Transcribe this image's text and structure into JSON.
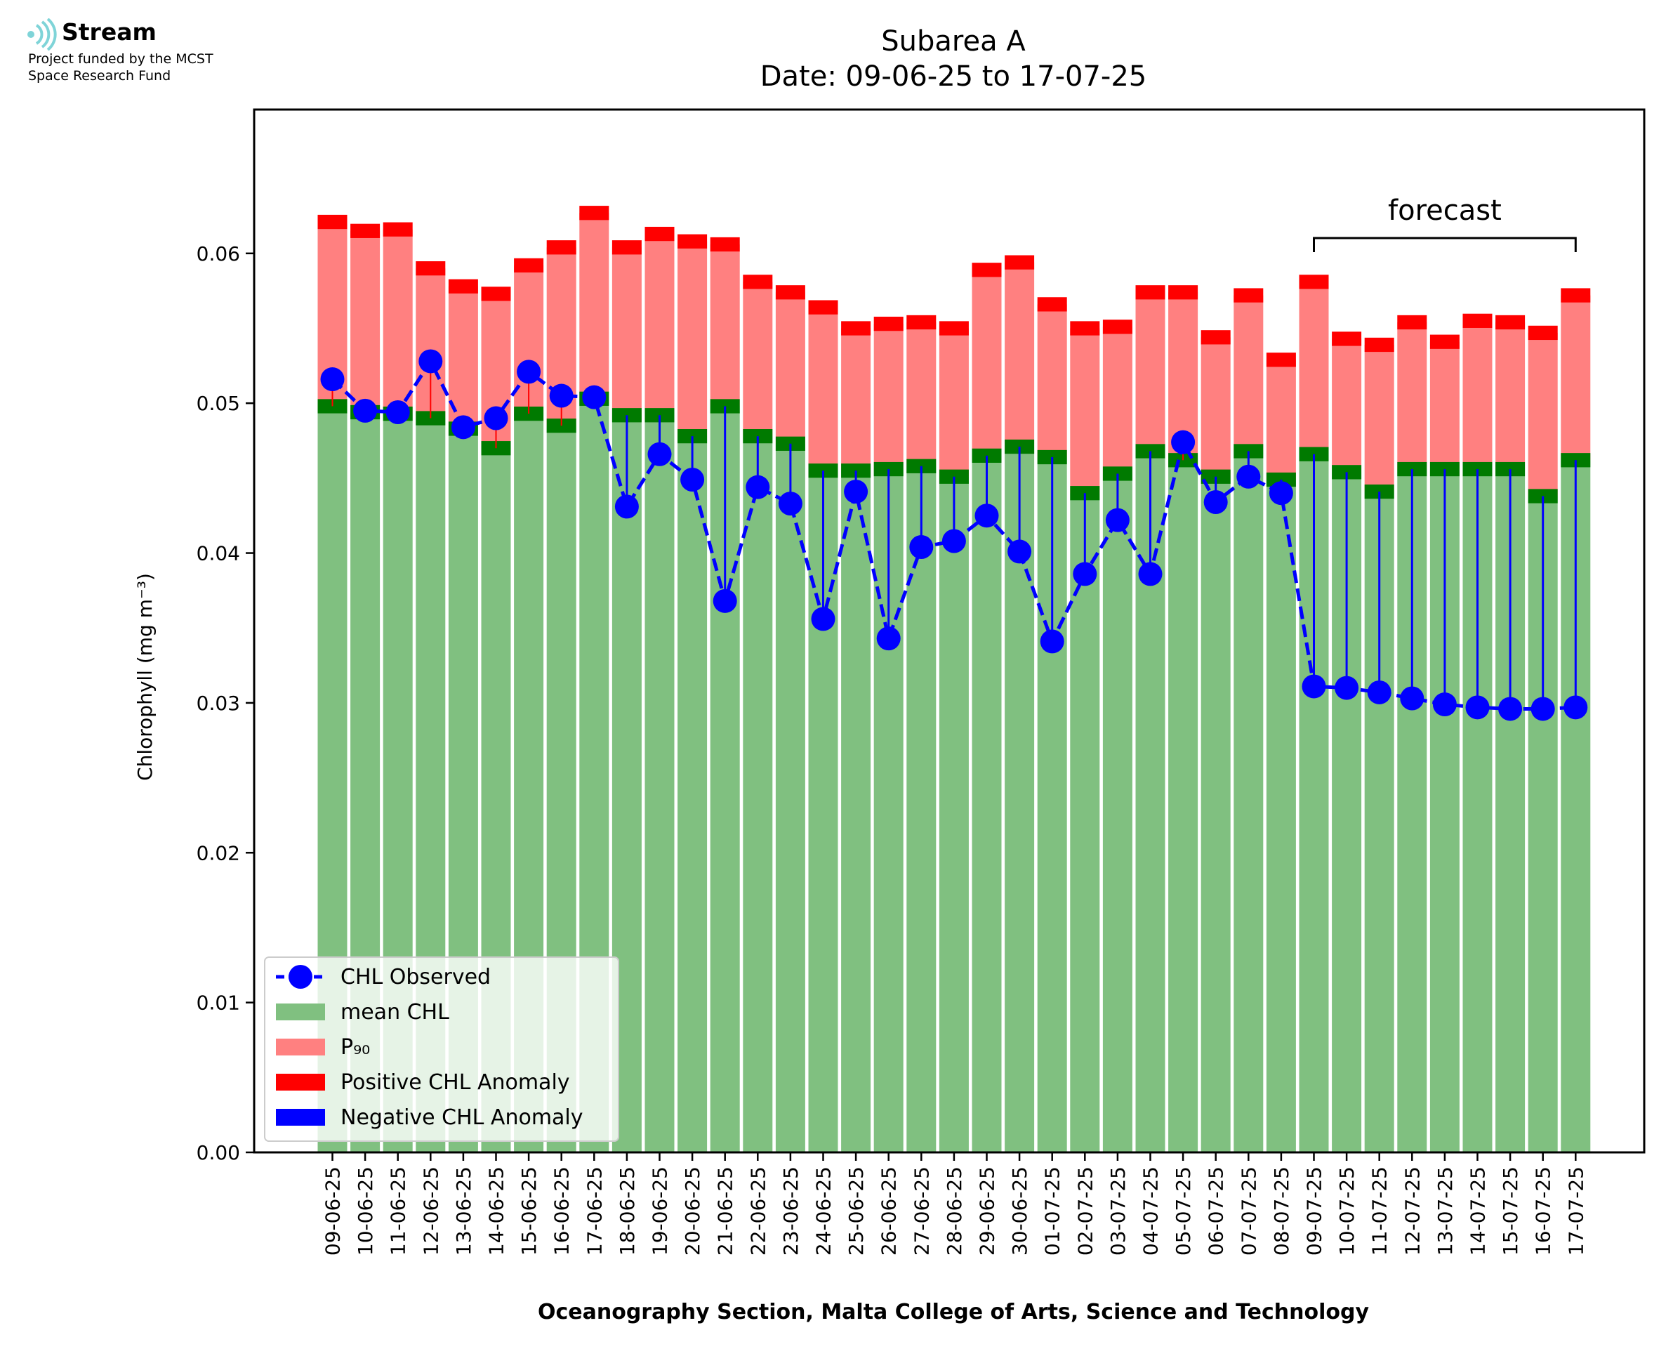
{
  "logo": {
    "brand": "Stream",
    "funding_line1": "Project funded by the MCST",
    "funding_line2": "Space Research Fund"
  },
  "chart_data": {
    "type": "bar",
    "title": "Subarea A",
    "subtitle": "Date: 09-06-25 to 17-07-25",
    "xlabel": "Oceanography Section, Malta College of Arts, Science and Technology",
    "ylabel": "Chlorophyll (mg m⁻³)",
    "ylim": [
      0,
      0.0696
    ],
    "yticks": [
      "0.00",
      "0.01",
      "0.02",
      "0.03",
      "0.04",
      "0.05",
      "0.06"
    ],
    "ytick_values": [
      0,
      0.01,
      0.02,
      0.03,
      0.04,
      0.05,
      0.06
    ],
    "grid": false,
    "legend_position": "lower-left",
    "annotation": {
      "text": "forecast",
      "from": "09-07-25",
      "to": "17-07-25"
    },
    "categories": [
      "09-06-25",
      "10-06-25",
      "11-06-25",
      "12-06-25",
      "13-06-25",
      "14-06-25",
      "15-06-25",
      "16-06-25",
      "17-06-25",
      "18-06-25",
      "19-06-25",
      "20-06-25",
      "21-06-25",
      "22-06-25",
      "23-06-25",
      "24-06-25",
      "25-06-25",
      "26-06-25",
      "27-06-25",
      "28-06-25",
      "29-06-25",
      "30-06-25",
      "01-07-25",
      "02-07-25",
      "03-07-25",
      "04-07-25",
      "05-07-25",
      "06-07-25",
      "07-07-25",
      "08-07-25",
      "09-07-25",
      "10-07-25",
      "11-07-25",
      "12-07-25",
      "13-07-25",
      "14-07-25",
      "15-07-25",
      "16-07-25",
      "17-07-25"
    ],
    "series": [
      {
        "name": "CHL Observed",
        "color": "#0000ff",
        "values": [
          0.0516,
          0.0495,
          0.0494,
          0.0528,
          0.0484,
          0.049,
          0.0521,
          0.0505,
          0.0504,
          0.0431,
          0.0466,
          0.0449,
          0.0368,
          0.0444,
          0.0433,
          0.0356,
          0.0441,
          0.0343,
          0.0404,
          0.0408,
          0.0425,
          0.0401,
          0.0341,
          0.0386,
          0.0422,
          0.0386,
          0.0474,
          0.0434,
          0.0451,
          0.044,
          0.0311,
          0.031,
          0.0307,
          0.0303,
          0.0299,
          0.0297,
          0.0296,
          0.0296,
          0.0297
        ]
      },
      {
        "name": "mean CHL",
        "color": "#80c080",
        "values": [
          0.0498,
          0.0494,
          0.0493,
          0.049,
          0.0483,
          0.047,
          0.0493,
          0.0485,
          0.0503,
          0.0492,
          0.0492,
          0.0478,
          0.0498,
          0.0478,
          0.0473,
          0.0455,
          0.0455,
          0.0456,
          0.0458,
          0.0451,
          0.0465,
          0.0471,
          0.0464,
          0.044,
          0.0453,
          0.0468,
          0.0462,
          0.0451,
          0.0468,
          0.0449,
          0.0466,
          0.0454,
          0.0441,
          0.0456,
          0.0456,
          0.0456,
          0.0456,
          0.0438,
          0.0462
        ]
      },
      {
        "name": "P₉₀",
        "color": "#ff8080",
        "values": [
          0.0621,
          0.0615,
          0.0616,
          0.059,
          0.0578,
          0.0573,
          0.0592,
          0.0604,
          0.0627,
          0.0604,
          0.0613,
          0.0608,
          0.0606,
          0.0581,
          0.0574,
          0.0564,
          0.055,
          0.0553,
          0.0554,
          0.055,
          0.0589,
          0.0594,
          0.0566,
          0.055,
          0.0551,
          0.0574,
          0.0574,
          0.0544,
          0.0572,
          0.0529,
          0.0581,
          0.0543,
          0.0539,
          0.0554,
          0.0541,
          0.0555,
          0.0554,
          0.0547,
          0.0572
        ]
      }
    ],
    "legend": [
      {
        "label": "CHL Observed",
        "kind": "line-marker",
        "color": "#0000ff"
      },
      {
        "label": "mean CHL",
        "kind": "patch",
        "color": "#80c080"
      },
      {
        "label": "P₉₀",
        "kind": "patch",
        "color": "#ff8080"
      },
      {
        "label": "Positive CHL Anomaly",
        "kind": "patch",
        "color": "#ff0000"
      },
      {
        "label": "Negative CHL Anomaly",
        "kind": "patch",
        "color": "#0000ff"
      }
    ],
    "colors": {
      "cap_mean": "#007a00",
      "cap_p90": "#ff0000",
      "negative": "#0000ff",
      "positive": "#ff0000"
    }
  }
}
